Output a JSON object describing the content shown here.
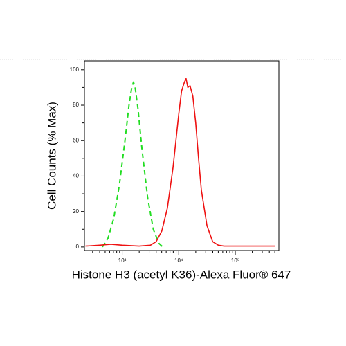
{
  "chart_data": {
    "type": "line",
    "xlabel": "Histone H3 (acetyl K36)-Alexa Fluor® 647",
    "ylabel": "Cell Counts (% Max)",
    "xscale": "log",
    "xlim": [
      215,
      590000
    ],
    "ylim": [
      -2,
      105
    ],
    "xticks": [
      {
        "value": 1000,
        "label": "10³"
      },
      {
        "value": 10000,
        "label": "10⁴"
      },
      {
        "value": 100000,
        "label": "10⁵"
      }
    ],
    "xminor": [
      300,
      400,
      500,
      600,
      700,
      800,
      900,
      2000,
      3000,
      4000,
      5000,
      6000,
      7000,
      8000,
      9000,
      20000,
      30000,
      40000,
      50000,
      60000,
      70000,
      80000,
      90000,
      200000,
      300000,
      400000,
      500000
    ],
    "yticks": [
      0,
      20,
      40,
      60,
      80,
      100
    ],
    "yminor": [
      10,
      30,
      50,
      70,
      90
    ],
    "series": [
      {
        "color": "#22dd22",
        "dash": true,
        "x": [
          447,
          562,
          708,
          891,
          1122,
          1318,
          1479,
          1585,
          1698,
          1905,
          2239,
          2818,
          3548,
          4467,
          5248
        ],
        "values": [
          0,
          5,
          16,
          35,
          60,
          80,
          90,
          93,
          90,
          78,
          55,
          28,
          10,
          2,
          0
        ]
      },
      {
        "color": "#ee1111",
        "dash": false,
        "x": [
          224,
          398,
          631,
          1000,
          1995,
          3162,
          3981,
          5012,
          6310,
          7943,
          8913,
          10000,
          11220,
          12589,
          13490,
          14454,
          15849,
          17783,
          19953,
          22387,
          25119,
          31623,
          39811,
          50119,
          63096,
          100000,
          199526,
          501187
        ],
        "values": [
          0.5,
          1,
          1.5,
          1,
          0.5,
          1,
          3,
          9,
          22,
          45,
          60,
          75,
          88,
          93,
          95,
          90,
          91,
          85,
          70,
          50,
          32,
          12,
          3,
          1,
          0.5,
          0.5,
          0.5,
          0.5
        ]
      }
    ]
  }
}
